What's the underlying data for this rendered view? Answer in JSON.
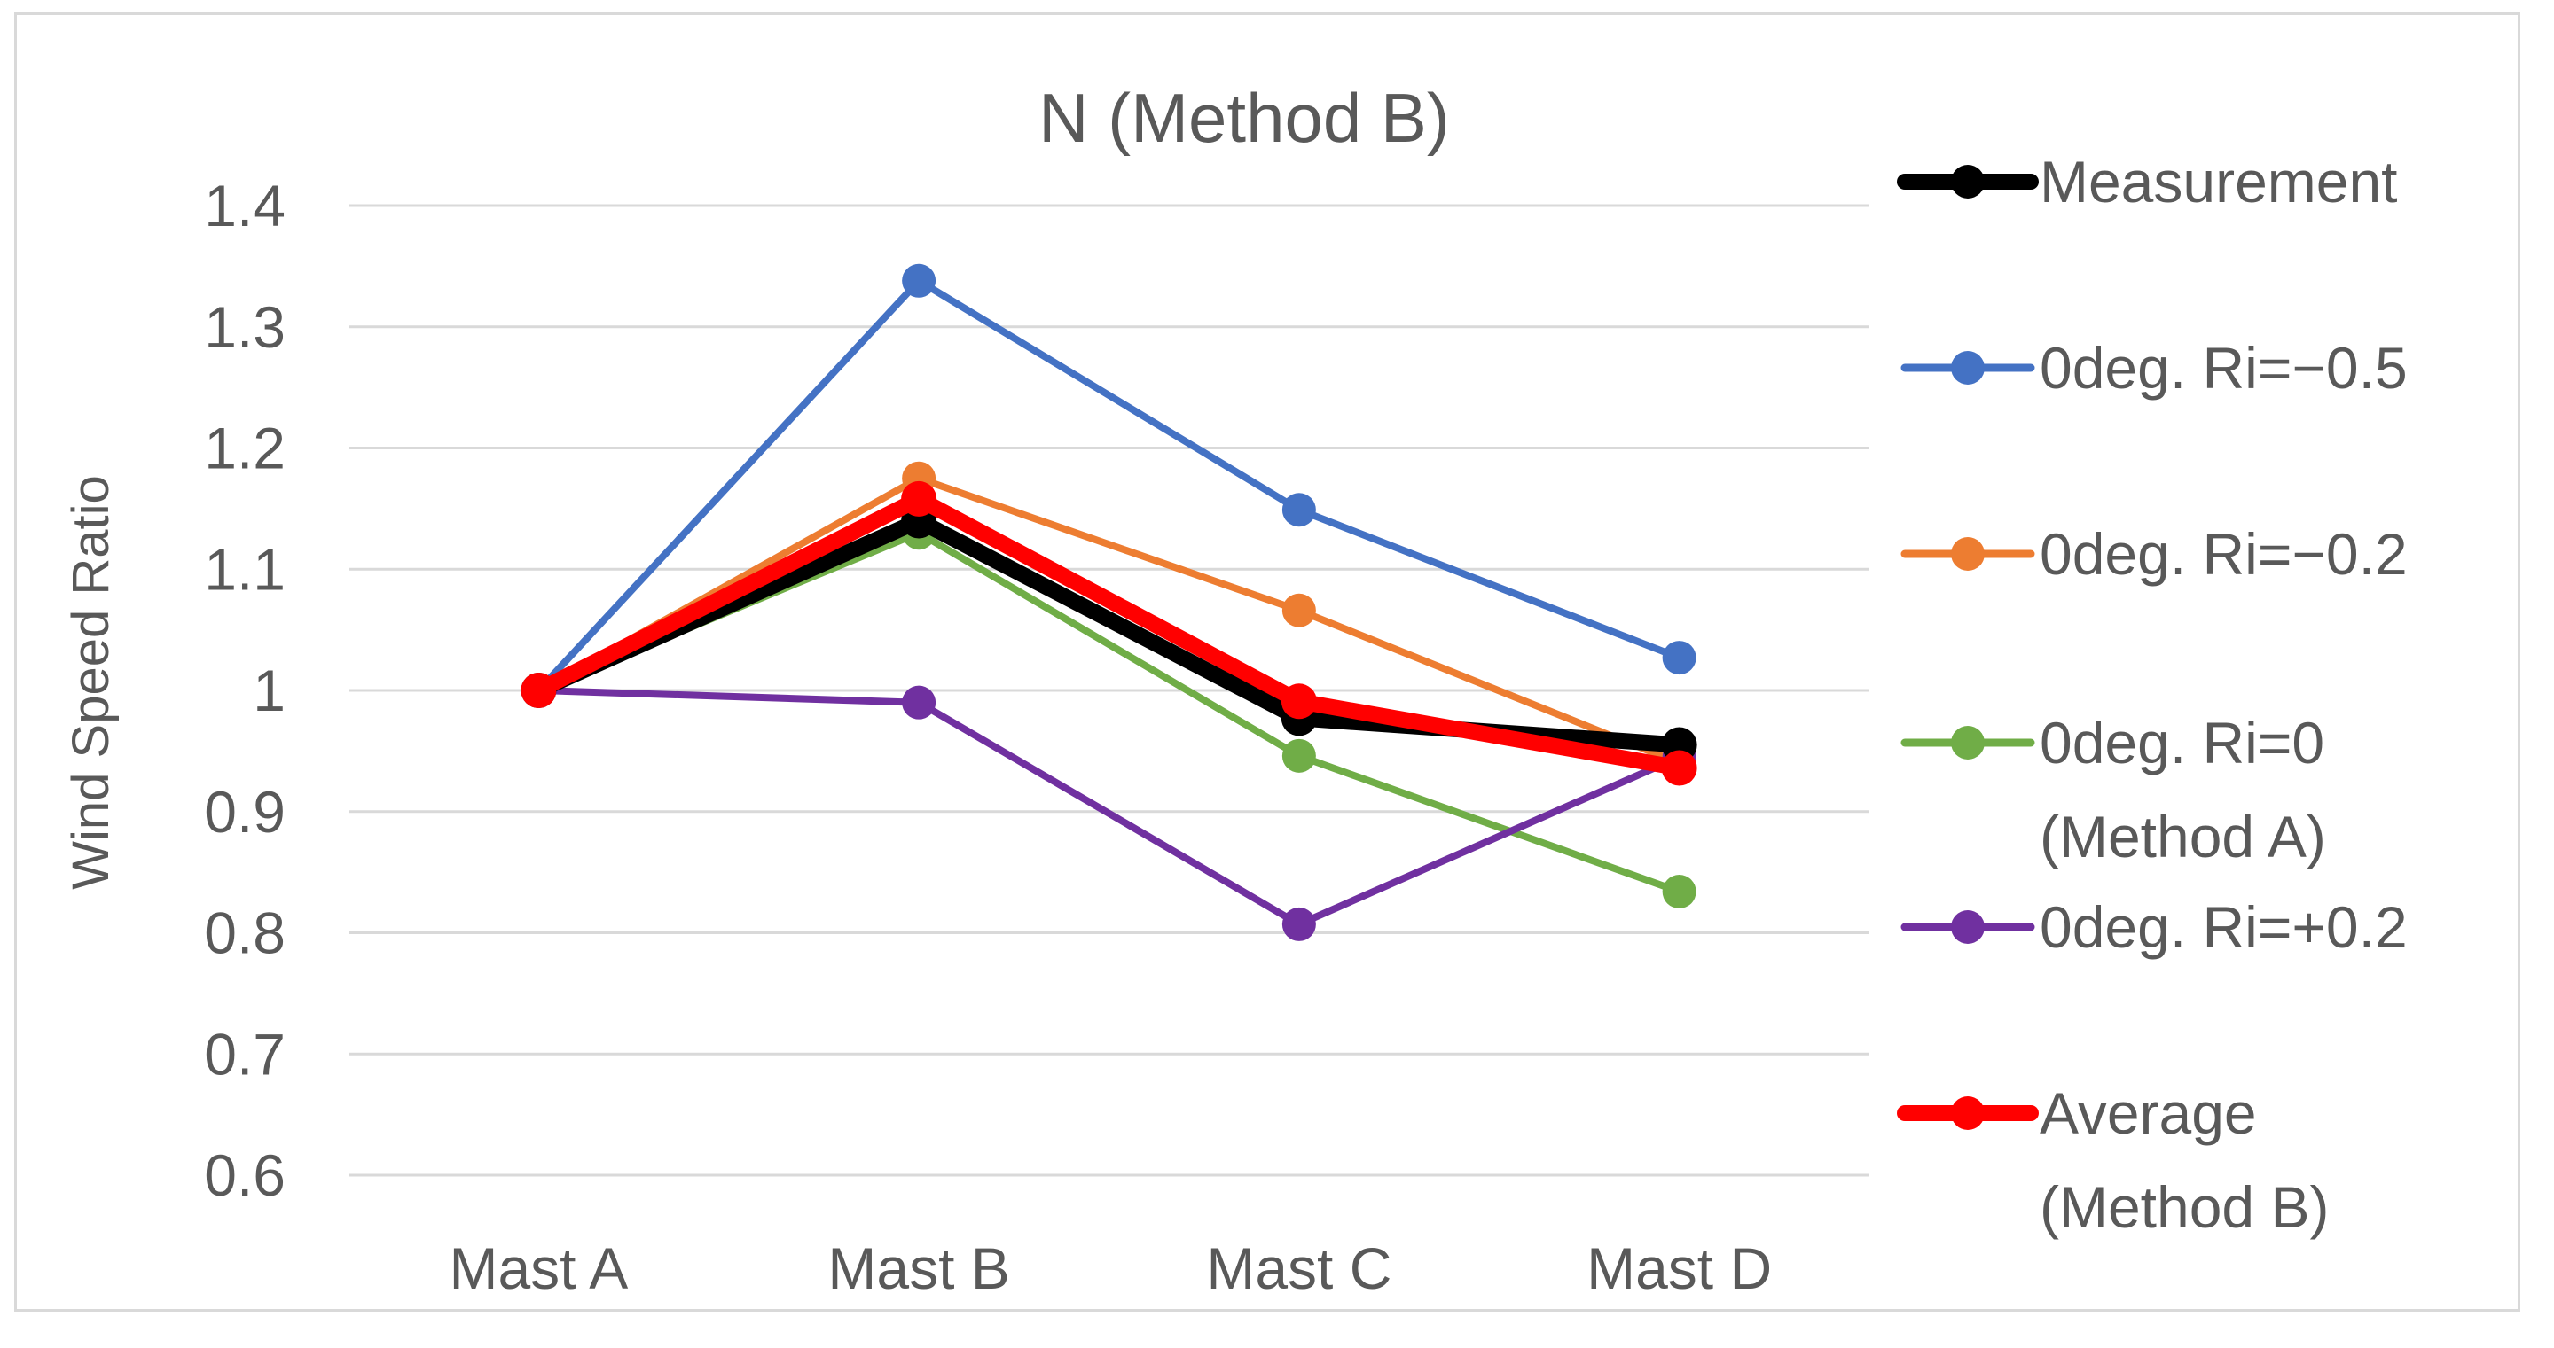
{
  "chart_data": {
    "type": "line",
    "title": "N (Method B)",
    "xlabel": "",
    "ylabel": "Wind Speed Ratio",
    "categories": [
      "Mast A",
      "Mast B",
      "Mast C",
      "Mast D"
    ],
    "ylim": [
      0.6,
      1.4
    ],
    "yticks": [
      "0.6",
      "0.7",
      "0.8",
      "0.9",
      "1",
      "1.1",
      "1.2",
      "1.3",
      "1.4"
    ],
    "grid": true,
    "legend_position": "right",
    "series": [
      {
        "name": "0deg. Ri=−0.5",
        "legend_lines": [
          "0deg. Ri=−0.5"
        ],
        "color": "#4472c4",
        "values": [
          1.0,
          1.338,
          1.149,
          1.027
        ],
        "width": "thin"
      },
      {
        "name": "0deg. Ri=−0.2",
        "legend_lines": [
          "0deg. Ri=−0.2"
        ],
        "color": "#ed7d31",
        "values": [
          1.0,
          1.175,
          1.066,
          0.94
        ],
        "width": "thin"
      },
      {
        "name": "0deg. Ri=0 (Method A)",
        "legend_lines": [
          "0deg. Ri=0",
          "(Method A)"
        ],
        "color": "#70ad47",
        "values": [
          1.0,
          1.13,
          0.946,
          0.834
        ],
        "width": "thin"
      },
      {
        "name": "0deg. Ri=+0.2",
        "legend_lines": [
          "0deg. Ri=+0.2"
        ],
        "color": "#7030a0",
        "values": [
          1.0,
          0.99,
          0.807,
          0.945
        ],
        "width": "thin"
      },
      {
        "name": "Measurement",
        "legend_lines": [
          "Measurement"
        ],
        "color": "#000000",
        "values": [
          1.0,
          1.14,
          0.977,
          0.955
        ],
        "width": "thick"
      },
      {
        "name": "Average (Method B)",
        "legend_lines": [
          "Average",
          "(Method B)"
        ],
        "color": "#ff0000",
        "values": [
          1.0,
          1.158,
          0.991,
          0.936
        ],
        "width": "thick"
      }
    ],
    "legend_order": [
      4,
      0,
      1,
      2,
      3,
      5
    ]
  }
}
